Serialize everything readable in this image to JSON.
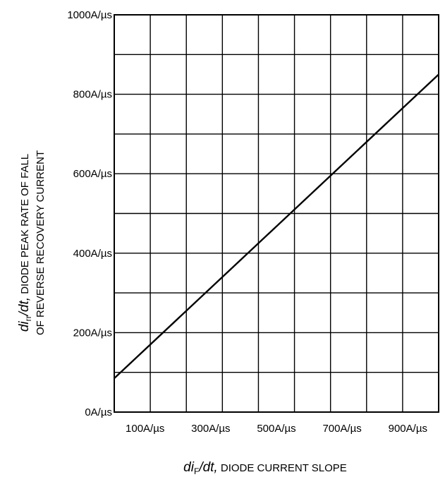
{
  "chart_data": {
    "type": "line",
    "xlabel": {
      "italic": "di",
      "sub": "F",
      "italic2": "/dt,",
      "text": " DIODE CURRENT SLOPE"
    },
    "ylabel": {
      "line1": {
        "italic": "di",
        "sub": "rr",
        "italic2": "/dt,",
        "text": " DIODE PEAK RATE OF FALL"
      },
      "line2": "OF REVERSE RECOVERY CURRENT"
    },
    "x_tick_labels": [
      "100A/µs",
      "300A/µs",
      "500A/µs",
      "700A/µs",
      "900A/µs"
    ],
    "x_ticks": [
      100,
      300,
      500,
      700,
      900
    ],
    "y_tick_labels": [
      "0A/µs",
      "200A/µs",
      "400A/µs",
      "600A/µs",
      "800A/µs",
      "1000A/µs"
    ],
    "y_ticks": [
      0,
      200,
      400,
      600,
      800,
      1000
    ],
    "xlim": [
      0,
      1000
    ],
    "ylim": [
      0,
      1000
    ],
    "grid": true,
    "series": [
      {
        "x": [
          0,
          1000
        ],
        "y": [
          85,
          850
        ]
      }
    ]
  }
}
